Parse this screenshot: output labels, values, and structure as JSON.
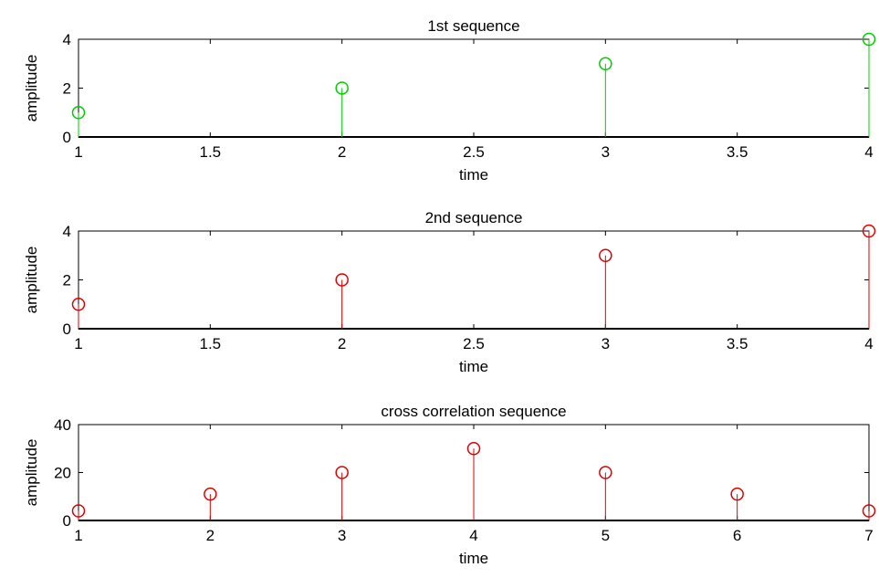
{
  "chart_data": [
    {
      "type": "stem",
      "title": "1st sequence",
      "xlabel": "time",
      "ylabel": "amplitude",
      "x": [
        1,
        2,
        3,
        4
      ],
      "y": [
        1,
        2,
        3,
        4
      ],
      "xlim": [
        1,
        4
      ],
      "ylim": [
        0,
        4
      ],
      "xticks": [
        1,
        1.5,
        2,
        2.5,
        3,
        3.5,
        4
      ],
      "yticks": [
        0,
        2,
        4
      ],
      "color": "#00cc00"
    },
    {
      "type": "stem",
      "title": "2nd sequence",
      "xlabel": "time",
      "ylabel": "amplitude",
      "x": [
        1,
        2,
        3,
        4
      ],
      "y": [
        1,
        2,
        3,
        4
      ],
      "xlim": [
        1,
        4
      ],
      "ylim": [
        0,
        4
      ],
      "xticks": [
        1,
        1.5,
        2,
        2.5,
        3,
        3.5,
        4
      ],
      "yticks": [
        0,
        2,
        4
      ],
      "color": "#dd0000"
    },
    {
      "type": "stem",
      "title": "cross correlation sequence",
      "xlabel": "time",
      "ylabel": "amplitude",
      "x": [
        1,
        2,
        3,
        4,
        5,
        6,
        7
      ],
      "y": [
        4,
        11,
        20,
        30,
        20,
        11,
        4
      ],
      "xlim": [
        1,
        7
      ],
      "ylim": [
        0,
        40
      ],
      "xticks": [
        1,
        2,
        3,
        4,
        5,
        6,
        7
      ],
      "yticks": [
        0,
        20,
        40
      ],
      "color": "#dd0000"
    }
  ]
}
